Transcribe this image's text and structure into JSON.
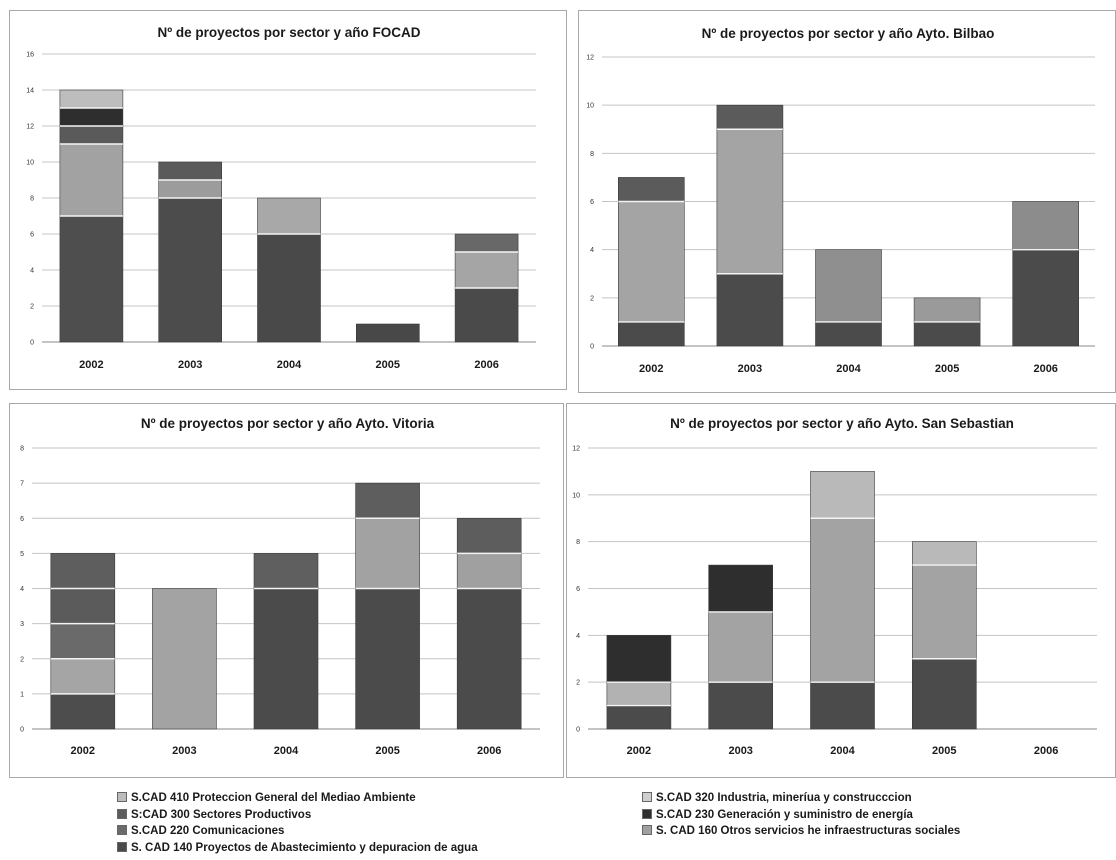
{
  "legend": {
    "left": [
      {
        "label": "S.CAD 410 Proteccion General del Mediao Ambiente",
        "color": "#bcbcbc"
      },
      {
        "label": "S:CAD 300 Sectores Productivos",
        "color": "#5c5c5c"
      },
      {
        "label": "S.CAD 220 Comunicaciones",
        "color": "#6a6a6a"
      },
      {
        "label": "S. CAD 140 Proyectos de Abastecimiento y depuracion de agua",
        "color": "#4a4a4a"
      }
    ],
    "right": [
      {
        "label": "S.CAD 320 Industria, mineríua y construcccion",
        "color": "#cfcfcf"
      },
      {
        "label": "S.CAD 230 Generación y suministro de energía",
        "color": "#2e2e2e"
      },
      {
        "label": "S. CAD 160 Otros servicios he infraestructuras sociales",
        "color": "#a0a0a0"
      }
    ]
  },
  "chart_data": [
    {
      "type": "bar",
      "stacked": true,
      "title": "Nº  de proyectos por sector y año FOCAD",
      "categories": [
        "2002",
        "2003",
        "2004",
        "2005",
        "2006"
      ],
      "ylim": [
        0,
        16
      ],
      "yticks": [
        0,
        2,
        4,
        6,
        8,
        10,
        12,
        14,
        16
      ],
      "grid": true,
      "segments": [
        [
          7,
          4,
          1,
          1,
          1
        ],
        [
          8,
          1,
          1
        ],
        [
          6,
          2
        ],
        [
          1
        ],
        [
          3,
          2,
          1
        ]
      ]
    },
    {
      "type": "bar",
      "stacked": true,
      "title": "Nº  de proyectos por sector y año Ayto. Bilbao",
      "categories": [
        "2002",
        "2003",
        "2004",
        "2005",
        "2006"
      ],
      "ylim": [
        0,
        12
      ],
      "yticks": [
        0,
        2,
        4,
        6,
        8,
        10,
        12
      ],
      "grid": true,
      "segments": [
        [
          1,
          5,
          1
        ],
        [
          3,
          6,
          1
        ],
        [
          1,
          3
        ],
        [
          1,
          1
        ],
        [
          4,
          2
        ]
      ]
    },
    {
      "type": "bar",
      "stacked": true,
      "title": "Nº  de proyectos por sector y año Ayto. Vitoria",
      "categories": [
        "2002",
        "2003",
        "2004",
        "2005",
        "2006"
      ],
      "ylim": [
        0,
        8
      ],
      "yticks": [
        0,
        1,
        2,
        3,
        4,
        5,
        6,
        7,
        8
      ],
      "grid": true,
      "segments": [
        [
          1,
          1,
          1,
          1,
          1
        ],
        [
          4
        ],
        [
          4,
          1
        ],
        [
          4,
          2,
          1
        ],
        [
          4,
          1,
          1
        ]
      ]
    },
    {
      "type": "bar",
      "stacked": true,
      "title": "Nº  de proyectos por sector y año Ayto. San Sebastian",
      "categories": [
        "2002",
        "2003",
        "2004",
        "2005",
        "2006"
      ],
      "ylim": [
        0,
        12
      ],
      "yticks": [
        0,
        2,
        4,
        6,
        8,
        10,
        12
      ],
      "grid": true,
      "segments": [
        [
          1,
          1,
          2
        ],
        [
          2,
          3,
          2
        ],
        [
          2,
          7,
          2
        ],
        [
          3,
          4,
          1
        ],
        []
      ]
    }
  ],
  "segment_colors": [
    [
      "#4e4e4e",
      "#a2a2a2",
      "#5a5a5a",
      "#2e2e2e",
      "#bdbdbd"
    ],
    [
      "#4c4c4c",
      "#9c9c9c",
      "#5a5a5a"
    ],
    [
      "#494949",
      "#a8a8a8",
      "#616161"
    ],
    [
      "#484848"
    ],
    [
      "#4a4a4a",
      "#a5a5a5",
      "#686868"
    ],
    [
      "#4b4b4b",
      "#a4a4a4",
      "#5b5b5b"
    ],
    [
      "#4b4b4b",
      "#a4a4a4",
      "#5b5b5b"
    ],
    [
      "#4b4b4b",
      "#8f8f8f"
    ],
    [
      "#4b4b4b",
      "#9a9a9a"
    ],
    [
      "#4b4b4b",
      "#8c8c8c"
    ],
    [
      "#4d4d4d",
      "#a5a5a5",
      "#6a6a6a",
      "#5b5b5b",
      "#5e5e5e"
    ],
    [
      "#a3a3a3"
    ],
    [
      "#4b4b4b",
      "#5f5f5f"
    ],
    [
      "#4b4b4b",
      "#a2a2a2",
      "#5e5e5e"
    ],
    [
      "#4b4b4b",
      "#a0a0a0",
      "#5d5d5d"
    ],
    [
      "#4b4b4b",
      "#b2b2b2",
      "#2e2e2e"
    ],
    [
      "#4b4b4b",
      "#a3a3a3",
      "#2e2e2e"
    ],
    [
      "#4b4b4b",
      "#a3a3a3",
      "#b9b9b9"
    ],
    [
      "#4b4b4b",
      "#a3a3a3",
      "#b9b9b9"
    ],
    []
  ]
}
